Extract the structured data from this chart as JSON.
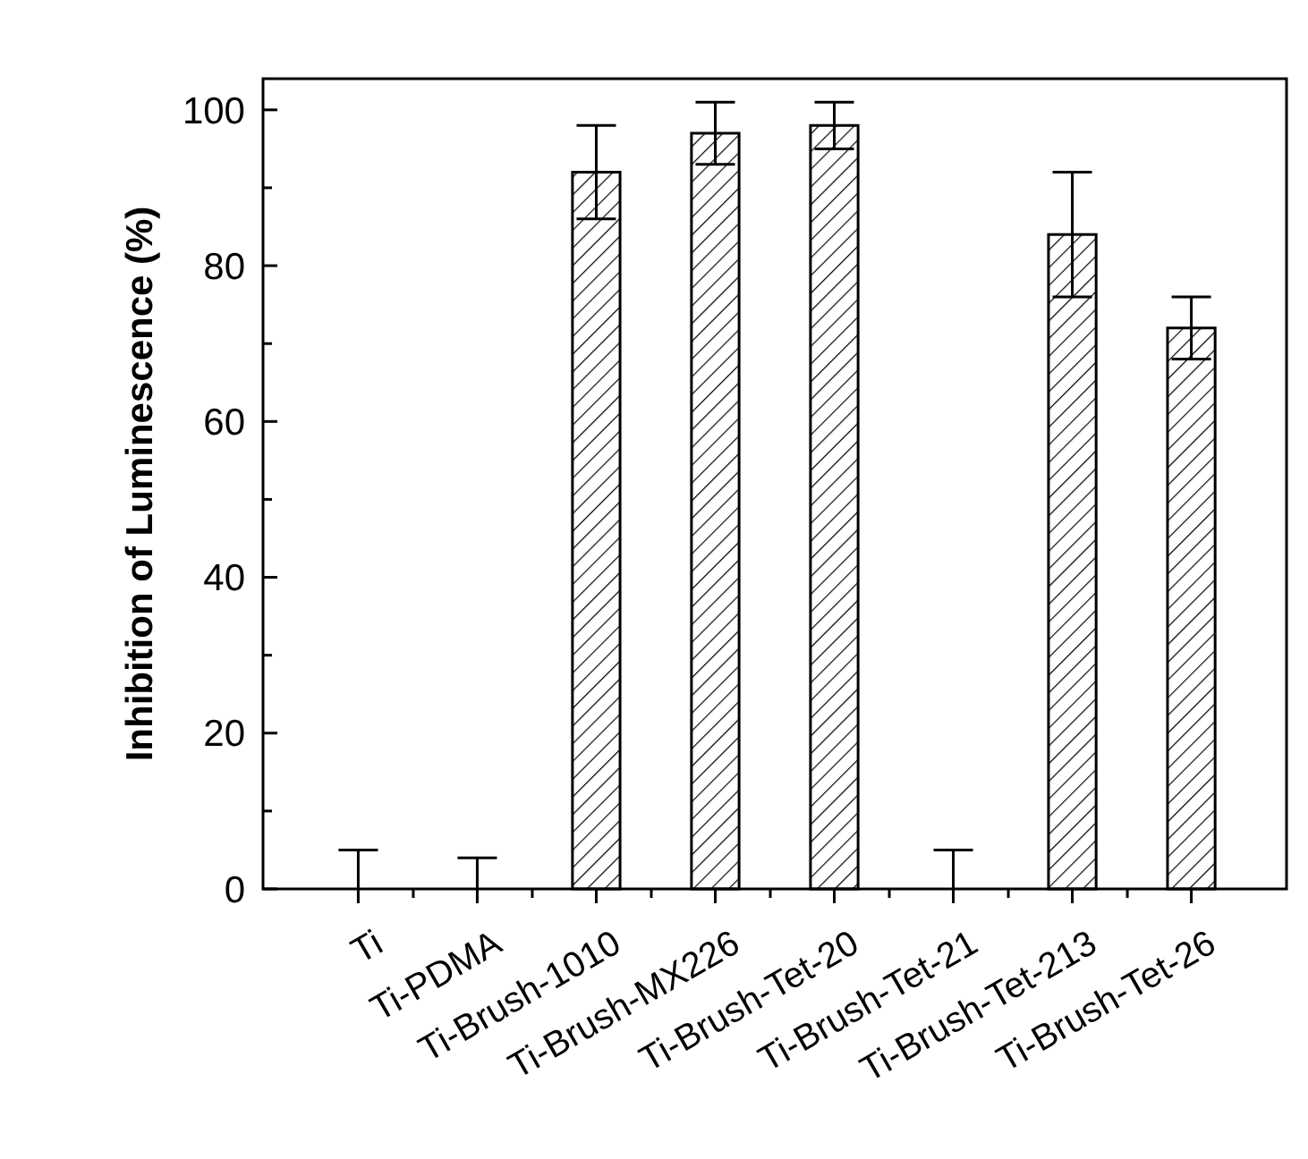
{
  "chart_data": {
    "type": "bar",
    "ylabel": "Inhibition of Luminescence (%)",
    "categories": [
      "Ti",
      "Ti-PDMA",
      "Ti-Brush-1010",
      "Ti-Brush-MX226",
      "Ti-Brush-Tet-20",
      "Ti-Brush-Tet-21",
      "Ti-Brush-Tet-213",
      "Ti-Brush-Tet-26"
    ],
    "values": [
      0,
      0,
      92,
      97,
      98,
      0,
      84,
      72
    ],
    "errors": [
      [
        0,
        5
      ],
      [
        0,
        4
      ],
      6,
      4,
      3,
      [
        0,
        5
      ],
      8,
      4
    ],
    "color": "#000000",
    "ylim": [
      0,
      104
    ],
    "yticks": [
      0,
      20,
      40,
      60,
      80,
      100
    ],
    "grid": false
  }
}
